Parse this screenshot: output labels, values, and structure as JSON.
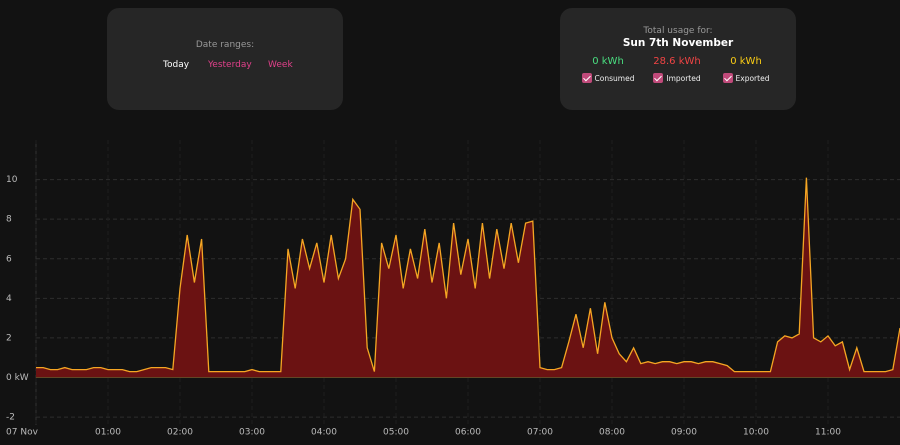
{
  "date_panel": {
    "title": "Date ranges:",
    "options": [
      "Today",
      "Yesterday",
      "Week"
    ]
  },
  "usage_panel": {
    "title": "Total usage for:",
    "date": "Sun 7th November",
    "stats": [
      {
        "value": "0 kWh",
        "label": "Consumed",
        "color": "#4ade80"
      },
      {
        "value": "28.6 kWh",
        "label": "Imported",
        "color": "#ef4444"
      },
      {
        "value": "0 kWh",
        "label": "Exported",
        "color": "#facc15"
      }
    ]
  },
  "chart_data": {
    "type": "area",
    "x": [
      0,
      0.1,
      0.2,
      0.3,
      0.4,
      0.5,
      0.6,
      0.7,
      0.8,
      0.9,
      1,
      1.1,
      1.2,
      1.3,
      1.4,
      1.5,
      1.6,
      1.7,
      1.8,
      1.9,
      2,
      2.1,
      2.2,
      2.3,
      2.4,
      2.5,
      2.6,
      2.7,
      2.8,
      2.9,
      3,
      3.1,
      3.2,
      3.3,
      3.4,
      3.5,
      3.6,
      3.7,
      3.8,
      3.9,
      4,
      4.1,
      4.2,
      4.3,
      4.4,
      4.5,
      4.6,
      4.7,
      4.8,
      4.9,
      5,
      5.1,
      5.2,
      5.3,
      5.4,
      5.5,
      5.6,
      5.7,
      5.8,
      5.9,
      6,
      6.1,
      6.2,
      6.3,
      6.4,
      6.5,
      6.6,
      6.7,
      6.8,
      6.9,
      7,
      7.1,
      7.2,
      7.3,
      7.4,
      7.5,
      7.6,
      7.7,
      7.8,
      7.9,
      8,
      8.1,
      8.2,
      8.3,
      8.4,
      8.5,
      8.6,
      8.7,
      8.8,
      8.9,
      9,
      9.1,
      9.2,
      9.3,
      9.4,
      9.5,
      9.6,
      9.7,
      9.8,
      9.9,
      10,
      10.1,
      10.2,
      10.3,
      10.4,
      10.5,
      10.6,
      10.7,
      10.8,
      10.9,
      11,
      11.1,
      11.2,
      11.3,
      11.4,
      11.5,
      11.6,
      11.7,
      11.8,
      11.9,
      12
    ],
    "values": [
      0.5,
      0.5,
      0.4,
      0.4,
      0.5,
      0.4,
      0.4,
      0.4,
      0.5,
      0.5,
      0.4,
      0.4,
      0.4,
      0.3,
      0.3,
      0.4,
      0.5,
      0.5,
      0.5,
      0.4,
      4.5,
      7.2,
      4.8,
      7.0,
      0.3,
      0.3,
      0.3,
      0.3,
      0.3,
      0.3,
      0.4,
      0.3,
      0.3,
      0.3,
      0.3,
      6.5,
      4.5,
      7.0,
      5.5,
      6.8,
      4.8,
      7.2,
      5.0,
      6.0,
      9.0,
      8.5,
      1.5,
      0.3,
      6.8,
      5.5,
      7.2,
      4.5,
      6.5,
      5.0,
      7.5,
      4.8,
      6.8,
      4.0,
      7.8,
      5.2,
      7.0,
      4.5,
      7.8,
      5.0,
      7.5,
      5.5,
      7.8,
      5.8,
      7.8,
      7.9,
      0.5,
      0.4,
      0.4,
      0.5,
      1.8,
      3.2,
      1.5,
      3.5,
      1.2,
      3.8,
      2.0,
      1.2,
      0.8,
      1.5,
      0.7,
      0.8,
      0.7,
      0.8,
      0.8,
      0.7,
      0.8,
      0.8,
      0.7,
      0.8,
      0.8,
      0.7,
      0.6,
      0.3,
      0.3,
      0.3,
      0.3,
      0.3,
      0.3,
      1.8,
      2.1,
      2.0,
      2.2,
      10.1,
      2.0,
      1.8,
      2.1,
      1.6,
      1.8,
      0.4,
      1.5,
      0.3,
      0.3,
      0.3,
      0.3,
      0.4,
      2.5
    ],
    "color": "#f5a623",
    "fill": "#6b1212",
    "xlim": [
      0,
      12
    ],
    "xticks": [
      {
        "value": 0,
        "label": "07 Nov"
      },
      {
        "value": 1,
        "label": "01:00"
      },
      {
        "value": 2,
        "label": "02:00"
      },
      {
        "value": 3,
        "label": "03:00"
      },
      {
        "value": 4,
        "label": "04:00"
      },
      {
        "value": 5,
        "label": "05:00"
      },
      {
        "value": 6,
        "label": "06:00"
      },
      {
        "value": 7,
        "label": "07:00"
      },
      {
        "value": 8,
        "label": "08:00"
      },
      {
        "value": 9,
        "label": "09:00"
      },
      {
        "value": 10,
        "label": "10:00"
      },
      {
        "value": 11,
        "label": "11:00"
      }
    ],
    "ylim": [
      -2.4,
      12
    ],
    "yticks": [
      -2,
      {
        "value": 0,
        "label": "0 kW"
      },
      2,
      4,
      6,
      8,
      10
    ],
    "grid": true
  }
}
